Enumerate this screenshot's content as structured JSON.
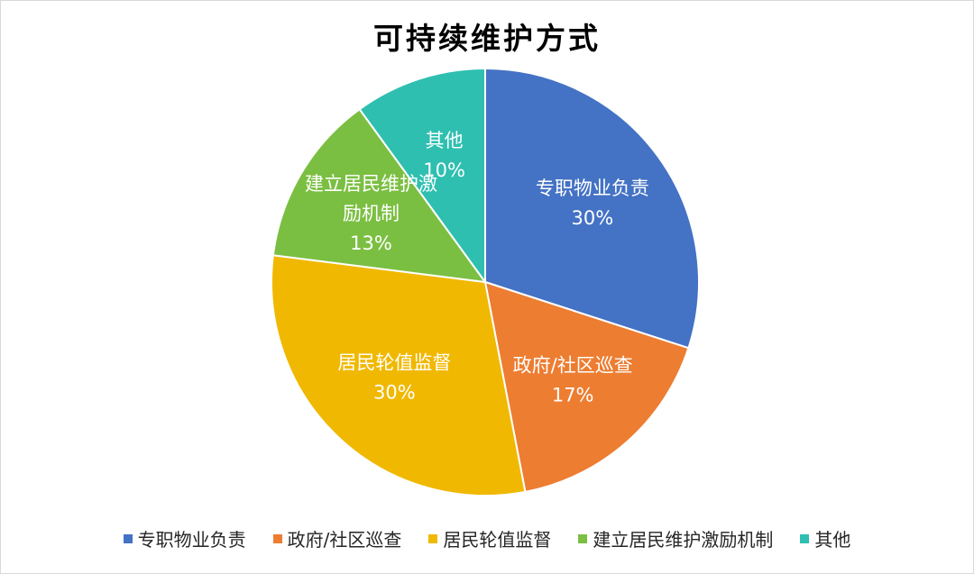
{
  "chart_data": {
    "type": "pie",
    "title": "可持续维护方式",
    "slices": [
      {
        "label": "专职物业负责",
        "value": 30,
        "display": "30%",
        "color": "#4472C4",
        "label_lines": [
          "专职物业负责"
        ]
      },
      {
        "label": "政府/社区巡查",
        "value": 17,
        "display": "17%",
        "color": "#ED7D31",
        "label_lines": [
          "政府/社区巡查"
        ]
      },
      {
        "label": "居民轮值监督",
        "value": 30,
        "display": "30%",
        "color": "#F0B800",
        "label_lines": [
          "居民轮值监督"
        ]
      },
      {
        "label": "建立居民维护激励机制",
        "value": 13,
        "display": "13%",
        "color": "#7BBF42",
        "label_lines": [
          "建立居民维护激",
          "励机制"
        ]
      },
      {
        "label": "其他",
        "value": 10,
        "display": "10%",
        "color": "#2EBFB0",
        "label_lines": [
          "其他"
        ]
      }
    ],
    "legend_position": "bottom"
  }
}
